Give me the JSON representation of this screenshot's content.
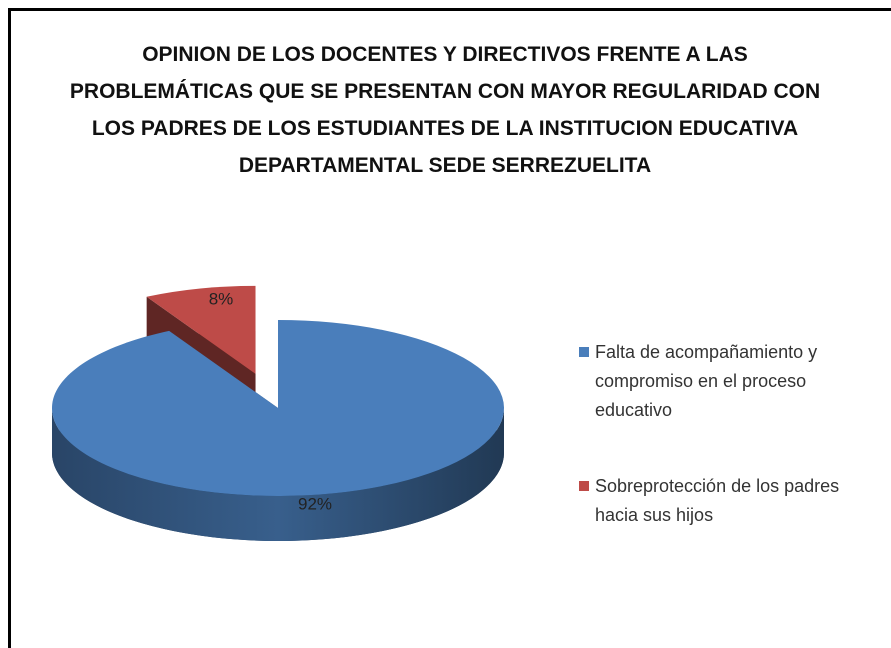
{
  "chart_data": {
    "type": "pie",
    "title": "OPINION DE LOS DOCENTES Y DIRECTIVOS FRENTE  A LAS PROBLEMÁTICAS QUE SE PRESENTAN CON MAYOR REGULARIDAD CON LOS PADRES DE LOS ESTUDIANTES DE LA INSTITUCION EDUCATIVA DEPARTAMENTAL SEDE SERREZUELITA",
    "categories": [
      "Falta de acompañamiento y compromiso en el proceso educativo",
      "Sobreprotección de los padres hacia sus hijos"
    ],
    "values": [
      92,
      8
    ],
    "value_labels": [
      "92%",
      "8%"
    ],
    "colors": [
      "#4a7ebb",
      "#be4b48"
    ],
    "legend": "right"
  }
}
